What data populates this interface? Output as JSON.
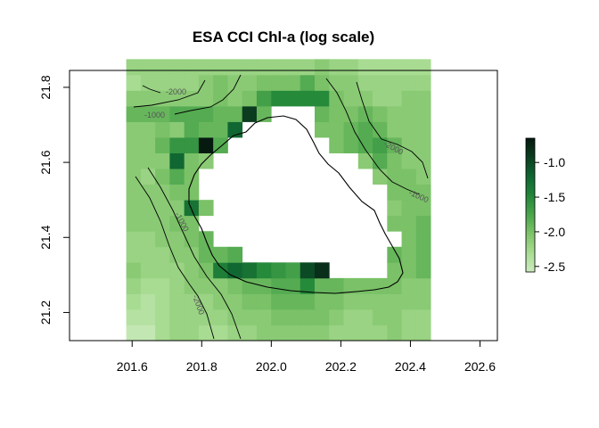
{
  "chart_data": {
    "type": "heatmap",
    "title": "ESA CCI Chl-a (log scale)",
    "x_ticks": [
      "201.6",
      "201.8",
      "202.0",
      "202.2",
      "202.4",
      "202.6"
    ],
    "y_ticks": [
      "21.2",
      "21.4",
      "21.6",
      "21.8"
    ],
    "xlim": [
      201.42,
      202.65
    ],
    "ylim": [
      21.125,
      21.845
    ],
    "grid": false,
    "colorbar": {
      "range": [
        -2.58,
        -0.65
      ],
      "ticks": [
        "-1.0",
        "-1.5",
        "-2.0",
        "-2.5"
      ],
      "tick_values": [
        -1.0,
        -1.5,
        -2.0,
        -2.5
      ],
      "colors": [
        "#cdebc0",
        "#a9dc93",
        "#7fc46a",
        "#4ba64c",
        "#23873a",
        "#106731",
        "#0b3f20",
        "#061a10"
      ],
      "placement": "right"
    },
    "contour_labels": [
      "-2000",
      "-1000",
      "-2000",
      "-1000",
      "-1000",
      "-2000"
    ],
    "grid_spec": {
      "lon_min": 201.583,
      "dlon": 0.04167,
      "ncols": 21,
      "lat_min": 21.125,
      "dlat": 0.04167,
      "nrows": 18
    },
    "heatmap_rows_south_to_north": [
      [
        -2.5,
        -2.5,
        -2.3,
        -2.2,
        -2.2,
        -2.3,
        -2.3,
        -2.2,
        -2.2,
        -2.1,
        -2.1,
        -2.1,
        -2.1,
        -2.1,
        -2.2,
        -2.2,
        -2.2,
        -2.2,
        -2.1,
        -2.2,
        -2.2
      ],
      [
        -2.4,
        -2.4,
        -2.3,
        -2.2,
        -2.2,
        -2.2,
        -2.2,
        -2.1,
        -2.1,
        -2.1,
        -2.0,
        -2.0,
        -2.0,
        -2.0,
        -2.1,
        -2.2,
        -2.2,
        -2.1,
        -2.1,
        -2.2,
        -2.2
      ],
      [
        -2.3,
        -2.4,
        -2.3,
        -2.2,
        -2.2,
        -2.2,
        -2.1,
        -2.1,
        -2.0,
        -2.0,
        -1.9,
        -1.9,
        -1.9,
        -2.0,
        -2.0,
        -2.1,
        -2.1,
        -2.1,
        -2.1,
        -2.1,
        -2.1
      ],
      [
        -2.2,
        -2.3,
        -2.3,
        -2.2,
        -2.1,
        -2.1,
        -2.1,
        -2.0,
        -1.9,
        -1.9,
        -1.8,
        -1.8,
        -1.5,
        -1.9,
        -1.9,
        -2.0,
        -2.0,
        -2.0,
        -2.0,
        -2.1,
        -2.1
      ],
      [
        -2.1,
        -2.2,
        -2.2,
        -2.2,
        -2.1,
        -2.0,
        -1.4,
        -1.2,
        -1.3,
        -1.5,
        -1.6,
        -1.7,
        -1.0,
        -0.8,
        null,
        null,
        null,
        null,
        -2.0,
        -2.0,
        -1.9
      ],
      [
        -2.2,
        -2.2,
        -2.2,
        -2.1,
        -2.1,
        -1.9,
        -1.9,
        -1.8,
        null,
        null,
        null,
        null,
        null,
        null,
        null,
        null,
        null,
        null,
        -1.9,
        -2.0,
        -1.9
      ],
      [
        -2.2,
        -2.2,
        -2.1,
        -2.1,
        -2.0,
        -1.9,
        null,
        null,
        null,
        null,
        null,
        null,
        null,
        null,
        null,
        null,
        null,
        null,
        null,
        -2.0,
        -1.9
      ],
      [
        -2.1,
        -2.1,
        -2.1,
        -2.0,
        -2.0,
        null,
        null,
        null,
        null,
        null,
        null,
        null,
        null,
        null,
        null,
        null,
        null,
        null,
        -2.0,
        -2.0,
        -1.9
      ],
      [
        -2.1,
        -2.1,
        -2.1,
        -2.1,
        -1.3,
        -2.0,
        null,
        null,
        null,
        null,
        null,
        null,
        null,
        null,
        null,
        null,
        null,
        null,
        -2.1,
        -2.0,
        -2.0
      ],
      [
        -2.1,
        -2.1,
        -2.1,
        -2.0,
        -2.0,
        null,
        null,
        null,
        null,
        null,
        null,
        null,
        null,
        null,
        null,
        null,
        null,
        null,
        -2.0,
        -2.0,
        -2.0
      ],
      [
        -2.1,
        -2.2,
        -2.0,
        -1.8,
        -2.0,
        null,
        null,
        null,
        null,
        null,
        null,
        null,
        null,
        null,
        null,
        null,
        null,
        -2.1,
        -2.0,
        -2.0,
        -2.1
      ],
      [
        -2.1,
        -2.1,
        -2.1,
        -1.2,
        -2.0,
        -2.1,
        null,
        null,
        null,
        null,
        null,
        null,
        null,
        null,
        null,
        null,
        -2.1,
        -1.8,
        -2.0,
        -2.1,
        -2.1
      ],
      [
        -2.1,
        -2.1,
        -1.9,
        -1.6,
        -1.6,
        -0.6,
        -1.8,
        null,
        null,
        null,
        null,
        null,
        null,
        null,
        -2.0,
        -1.9,
        -1.8,
        -1.7,
        -1.9,
        -2.1,
        -2.1
      ],
      [
        -2.1,
        -2.1,
        -2.0,
        -2.1,
        -1.8,
        -1.9,
        -1.9,
        -1.2,
        null,
        null,
        null,
        null,
        null,
        -2.0,
        -2.0,
        -1.9,
        -1.8,
        -1.9,
        -2.1,
        -2.1,
        -2.1
      ],
      [
        -1.9,
        -1.9,
        -1.9,
        -1.8,
        -1.8,
        -1.8,
        -1.9,
        -1.9,
        -0.9,
        -1.9,
        null,
        null,
        null,
        -1.9,
        -2.0,
        -2.0,
        -1.9,
        -2.0,
        -2.1,
        -2.1,
        -2.1
      ],
      [
        -2.1,
        -2.1,
        -2.1,
        -2.1,
        -2.1,
        -2.1,
        -2.0,
        -2.1,
        -2.0,
        -1.7,
        -1.5,
        -1.5,
        -1.5,
        -1.5,
        -2.0,
        -2.1,
        -2.1,
        -2.2,
        -2.2,
        -2.1,
        -2.1
      ],
      [
        -2.3,
        -2.2,
        -2.2,
        -2.2,
        -2.2,
        -2.1,
        -2.0,
        -2.1,
        -2.1,
        -2.0,
        -2.0,
        -2.0,
        -1.8,
        -2.0,
        -2.1,
        -2.1,
        -2.2,
        -2.2,
        -2.2,
        -2.2,
        -2.2
      ],
      [
        -2.2,
        -2.2,
        -2.2,
        -2.2,
        -2.2,
        -2.2,
        -2.2,
        -2.2,
        -2.2,
        -2.2,
        -2.2,
        -2.2,
        -2.2,
        -2.1,
        -2.2,
        -2.2,
        -2.3,
        -2.3,
        -2.3,
        -2.3,
        -2.3
      ]
    ]
  }
}
